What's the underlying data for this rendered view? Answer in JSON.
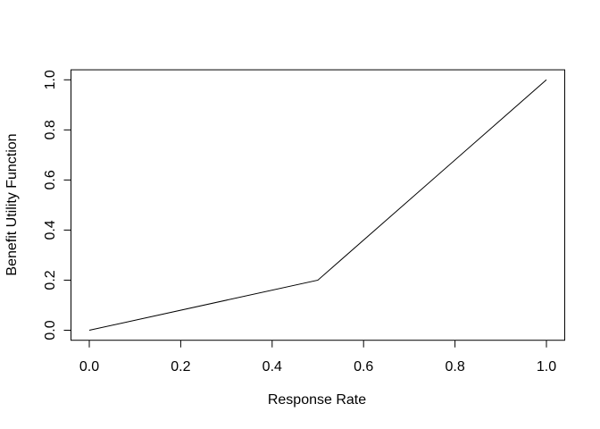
{
  "figure": {
    "background": "#ffffff"
  },
  "chart_data": {
    "type": "line",
    "title": "",
    "xlabel": "Response Rate",
    "ylabel": "Benefit Utility Function",
    "x": [
      0.0,
      0.5,
      1.0
    ],
    "y": [
      0.0,
      0.2,
      1.0
    ],
    "xlim": [
      0.0,
      1.0
    ],
    "ylim": [
      0.0,
      1.0
    ],
    "x_tick_values": [
      0.0,
      0.2,
      0.4,
      0.6,
      0.8,
      1.0
    ],
    "x_tick_labels": [
      "0.0",
      "0.2",
      "0.4",
      "0.6",
      "0.8",
      "1.0"
    ],
    "y_tick_values": [
      0.0,
      0.2,
      0.4,
      0.6,
      0.8,
      1.0
    ],
    "y_tick_labels": [
      "0.0",
      "0.2",
      "0.4",
      "0.6",
      "0.8",
      "1.0"
    ],
    "grid": false,
    "legend": null,
    "line_color": "#000000",
    "axis_color": "#000000",
    "text_color": "#000000"
  }
}
